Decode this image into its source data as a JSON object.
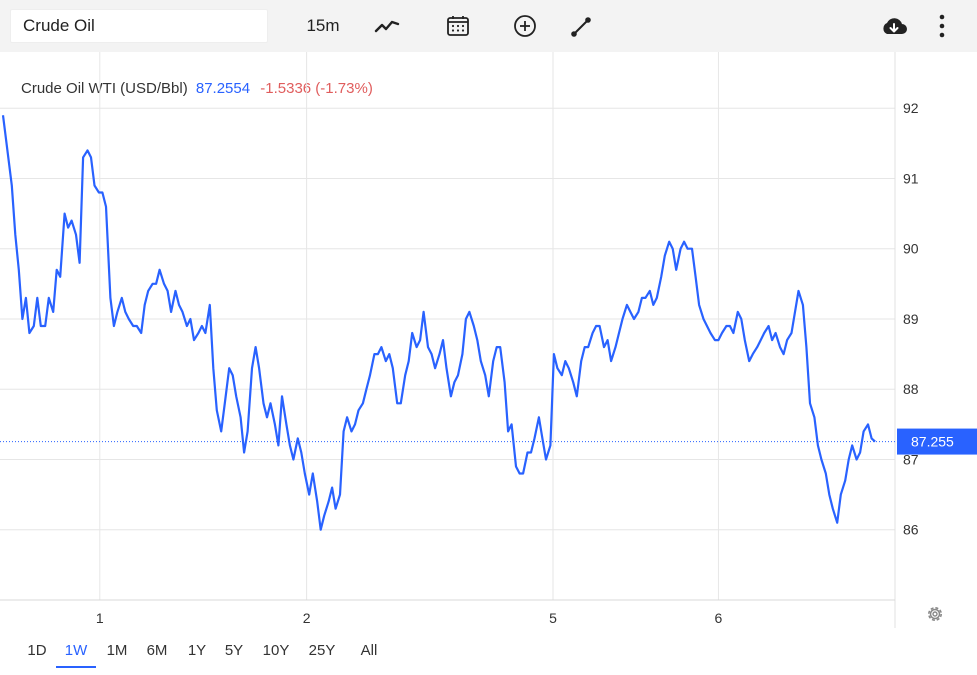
{
  "toolbar": {
    "search_value": "Crude Oil",
    "interval": "15m",
    "icons": [
      "line-chart-icon",
      "calendar-icon",
      "add-indicator-icon",
      "draw-line-icon",
      "download-icon",
      "more-icon"
    ]
  },
  "header": {
    "name": "Crude Oil WTI (USD/Bbl)",
    "price": "87.2554",
    "change": "-1.5336 (-1.73%)"
  },
  "colors": {
    "line": "#2962ff",
    "change_negative": "#e05d5d",
    "price_label_bg": "#2962ff"
  },
  "chart_data": {
    "type": "line",
    "y_ticks": [
      86,
      87,
      88,
      89,
      90,
      91,
      92
    ],
    "ylim": [
      85.0,
      92.8
    ],
    "xlim": [
      0,
      100
    ],
    "x_ticks": [
      {
        "label": "1",
        "x": 11
      },
      {
        "label": "2",
        "x": 34.5
      },
      {
        "label": "5",
        "x": 62.5
      },
      {
        "label": "6",
        "x": 81.3
      }
    ],
    "last_price_label": "87.255",
    "last_price": 87.255,
    "grid": true,
    "series": [
      {
        "points": [
          [
            0,
            91.9
          ],
          [
            1,
            90.9
          ],
          [
            1.4,
            90.2
          ],
          [
            1.8,
            89.7
          ],
          [
            2.2,
            89.0
          ],
          [
            2.6,
            89.3
          ],
          [
            3.0,
            88.8
          ],
          [
            3.5,
            88.9
          ],
          [
            3.9,
            89.3
          ],
          [
            4.3,
            88.9
          ],
          [
            4.8,
            88.9
          ],
          [
            5.2,
            89.3
          ],
          [
            5.7,
            89.1
          ],
          [
            6.1,
            89.7
          ],
          [
            6.5,
            89.6
          ],
          [
            7.0,
            90.5
          ],
          [
            7.4,
            90.3
          ],
          [
            7.8,
            90.4
          ],
          [
            8.3,
            90.2
          ],
          [
            8.7,
            89.8
          ],
          [
            9.1,
            91.3
          ],
          [
            9.6,
            91.4
          ],
          [
            10.0,
            91.3
          ],
          [
            10.4,
            90.9
          ],
          [
            10.9,
            90.8
          ],
          [
            11.3,
            90.8
          ],
          [
            11.7,
            90.6
          ],
          [
            12.2,
            89.3
          ],
          [
            12.6,
            88.9
          ],
          [
            13.0,
            89.1
          ],
          [
            13.5,
            89.3
          ],
          [
            13.9,
            89.1
          ],
          [
            14.3,
            89.0
          ],
          [
            14.8,
            88.9
          ],
          [
            15.2,
            88.9
          ],
          [
            15.7,
            88.8
          ],
          [
            16.1,
            89.2
          ],
          [
            16.5,
            89.4
          ],
          [
            17.0,
            89.5
          ],
          [
            17.4,
            89.5
          ],
          [
            17.8,
            89.7
          ],
          [
            18.3,
            89.5
          ],
          [
            18.7,
            89.4
          ],
          [
            19.1,
            89.1
          ],
          [
            19.6,
            89.4
          ],
          [
            20.0,
            89.2
          ],
          [
            20.4,
            89.1
          ],
          [
            20.9,
            88.9
          ],
          [
            21.3,
            89.0
          ],
          [
            21.7,
            88.7
          ],
          [
            22.2,
            88.8
          ],
          [
            22.6,
            88.9
          ],
          [
            23.0,
            88.8
          ],
          [
            23.5,
            89.2
          ],
          [
            23.9,
            88.3
          ],
          [
            24.3,
            87.7
          ],
          [
            24.8,
            87.4
          ],
          [
            25.2,
            87.8
          ],
          [
            25.7,
            88.3
          ],
          [
            26.1,
            88.2
          ],
          [
            26.5,
            87.9
          ],
          [
            27.0,
            87.6
          ],
          [
            27.4,
            87.1
          ],
          [
            27.8,
            87.4
          ],
          [
            28.3,
            88.3
          ],
          [
            28.7,
            88.6
          ],
          [
            29.1,
            88.3
          ],
          [
            29.6,
            87.8
          ],
          [
            30.0,
            87.6
          ],
          [
            30.4,
            87.8
          ],
          [
            30.9,
            87.5
          ],
          [
            31.3,
            87.2
          ],
          [
            31.7,
            87.9
          ],
          [
            32.2,
            87.5
          ],
          [
            32.6,
            87.2
          ],
          [
            33.0,
            87.0
          ],
          [
            33.5,
            87.3
          ],
          [
            33.9,
            87.1
          ],
          [
            34.3,
            86.8
          ],
          [
            34.8,
            86.5
          ],
          [
            35.2,
            86.8
          ],
          [
            35.7,
            86.4
          ],
          [
            36.1,
            86.0
          ],
          [
            36.5,
            86.2
          ],
          [
            37.0,
            86.4
          ],
          [
            37.4,
            86.6
          ],
          [
            37.8,
            86.3
          ],
          [
            38.3,
            86.5
          ],
          [
            38.7,
            87.4
          ],
          [
            39.1,
            87.6
          ],
          [
            39.6,
            87.4
          ],
          [
            40.0,
            87.5
          ],
          [
            40.4,
            87.7
          ],
          [
            40.9,
            87.8
          ],
          [
            41.3,
            88.0
          ],
          [
            41.7,
            88.2
          ],
          [
            42.2,
            88.5
          ],
          [
            42.6,
            88.5
          ],
          [
            43.0,
            88.6
          ],
          [
            43.5,
            88.4
          ],
          [
            43.9,
            88.5
          ],
          [
            44.3,
            88.3
          ],
          [
            44.8,
            87.8
          ],
          [
            45.2,
            87.8
          ],
          [
            45.7,
            88.2
          ],
          [
            46.1,
            88.4
          ],
          [
            46.5,
            88.8
          ],
          [
            47.0,
            88.6
          ],
          [
            47.4,
            88.7
          ],
          [
            47.8,
            89.1
          ],
          [
            48.3,
            88.6
          ],
          [
            48.7,
            88.5
          ],
          [
            49.1,
            88.3
          ],
          [
            49.6,
            88.5
          ],
          [
            50.0,
            88.7
          ],
          [
            50.4,
            88.3
          ],
          [
            50.9,
            87.9
          ],
          [
            51.3,
            88.1
          ],
          [
            51.7,
            88.2
          ],
          [
            52.2,
            88.5
          ],
          [
            52.6,
            89.0
          ],
          [
            53.0,
            89.1
          ],
          [
            53.5,
            88.9
          ],
          [
            53.9,
            88.7
          ],
          [
            54.3,
            88.4
          ],
          [
            54.8,
            88.2
          ],
          [
            55.2,
            87.9
          ],
          [
            55.7,
            88.4
          ],
          [
            56.1,
            88.6
          ],
          [
            56.5,
            88.6
          ],
          [
            57.0,
            88.1
          ],
          [
            57.4,
            87.4
          ],
          [
            57.8,
            87.5
          ],
          [
            58.3,
            86.9
          ],
          [
            58.7,
            86.8
          ],
          [
            59.1,
            86.8
          ],
          [
            59.6,
            87.1
          ],
          [
            60.0,
            87.1
          ],
          [
            60.4,
            87.3
          ],
          [
            60.9,
            87.6
          ],
          [
            61.3,
            87.3
          ],
          [
            61.7,
            87.0
          ],
          [
            62.2,
            87.2
          ],
          [
            62.6,
            88.5
          ],
          [
            63.0,
            88.3
          ],
          [
            63.5,
            88.2
          ],
          [
            63.9,
            88.4
          ],
          [
            64.3,
            88.3
          ],
          [
            64.8,
            88.1
          ],
          [
            65.2,
            87.9
          ],
          [
            65.7,
            88.4
          ],
          [
            66.1,
            88.6
          ],
          [
            66.5,
            88.6
          ],
          [
            67.0,
            88.8
          ],
          [
            67.4,
            88.9
          ],
          [
            67.8,
            88.9
          ],
          [
            68.3,
            88.6
          ],
          [
            68.7,
            88.7
          ],
          [
            69.1,
            88.4
          ],
          [
            69.6,
            88.6
          ],
          [
            70.0,
            88.8
          ],
          [
            70.4,
            89.0
          ],
          [
            70.9,
            89.2
          ],
          [
            71.3,
            89.1
          ],
          [
            71.7,
            89.0
          ],
          [
            72.2,
            89.1
          ],
          [
            72.6,
            89.3
          ],
          [
            73.0,
            89.3
          ],
          [
            73.5,
            89.4
          ],
          [
            73.9,
            89.2
          ],
          [
            74.3,
            89.3
          ],
          [
            74.8,
            89.6
          ],
          [
            75.2,
            89.9
          ],
          [
            75.7,
            90.1
          ],
          [
            76.1,
            90.0
          ],
          [
            76.5,
            89.7
          ],
          [
            77.0,
            90.0
          ],
          [
            77.4,
            90.1
          ],
          [
            77.8,
            90.0
          ],
          [
            78.3,
            90.0
          ],
          [
            78.7,
            89.6
          ],
          [
            79.1,
            89.2
          ],
          [
            79.6,
            89.0
          ],
          [
            80.0,
            88.9
          ],
          [
            80.4,
            88.8
          ],
          [
            80.9,
            88.7
          ],
          [
            81.3,
            88.7
          ],
          [
            81.7,
            88.8
          ],
          [
            82.2,
            88.9
          ],
          [
            82.6,
            88.9
          ],
          [
            83.0,
            88.8
          ],
          [
            83.5,
            89.1
          ],
          [
            83.9,
            89.0
          ],
          [
            84.3,
            88.7
          ],
          [
            84.8,
            88.4
          ],
          [
            85.2,
            88.5
          ],
          [
            85.7,
            88.6
          ],
          [
            86.1,
            88.7
          ],
          [
            86.5,
            88.8
          ],
          [
            87.0,
            88.9
          ],
          [
            87.4,
            88.7
          ],
          [
            87.8,
            88.8
          ],
          [
            88.3,
            88.6
          ],
          [
            88.7,
            88.5
          ],
          [
            89.1,
            88.7
          ],
          [
            89.6,
            88.8
          ],
          [
            90.0,
            89.1
          ],
          [
            90.4,
            89.4
          ],
          [
            90.9,
            89.2
          ],
          [
            91.3,
            88.6
          ],
          [
            91.7,
            87.8
          ],
          [
            92.2,
            87.6
          ],
          [
            92.6,
            87.2
          ],
          [
            93.0,
            87.0
          ],
          [
            93.5,
            86.8
          ],
          [
            93.9,
            86.5
          ],
          [
            94.3,
            86.3
          ],
          [
            94.8,
            86.1
          ],
          [
            95.2,
            86.5
          ],
          [
            95.7,
            86.7
          ],
          [
            96.1,
            87.0
          ],
          [
            96.5,
            87.2
          ],
          [
            97.0,
            87.0
          ],
          [
            97.4,
            87.1
          ],
          [
            97.8,
            87.4
          ],
          [
            98.3,
            87.5
          ],
          [
            98.7,
            87.3
          ],
          [
            99.1,
            87.255
          ]
        ]
      }
    ]
  },
  "ranges": [
    "1D",
    "1W",
    "1M",
    "6M",
    "1Y",
    "5Y",
    "10Y",
    "25Y",
    "All"
  ],
  "active_range": "1W"
}
